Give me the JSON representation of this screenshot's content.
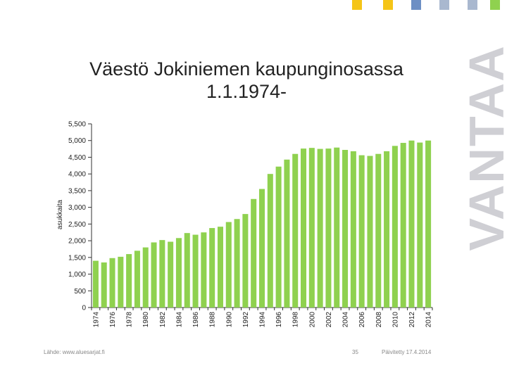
{
  "slide": {
    "title_line1": "Väestö Jokiniemen kaupunginosassa",
    "title_line2": "1.1.1974-",
    "source": "Lähde: www.aluesarjat.fi",
    "page_number": "35",
    "updated": "Päivitetty 17.4.2014",
    "brand": "VANTAA"
  },
  "colors": {
    "bar": "#8fd14f",
    "brand_squares": [
      "#f5c518",
      "#f5c518",
      "#6d8fc4",
      "#a9b8cf",
      "#a9b8cf",
      "#8fd14f"
    ]
  },
  "chart_data": {
    "type": "bar",
    "title": "Väestö Jokiniemen kaupunginosassa 1.1.1974-",
    "ylabel": "asukkaita",
    "xlabel": "",
    "ylim": [
      0,
      5500
    ],
    "yticks": [
      0,
      500,
      1000,
      1500,
      2000,
      2500,
      3000,
      3500,
      4000,
      4500,
      5000,
      5500
    ],
    "ytick_labels": [
      "0",
      "500",
      "1,000",
      "1,500",
      "2,000",
      "2,500",
      "3,000",
      "3,500",
      "4,000",
      "4,500",
      "5,000",
      "5,500"
    ],
    "categories": [
      1974,
      1975,
      1976,
      1977,
      1978,
      1979,
      1980,
      1981,
      1982,
      1983,
      1984,
      1985,
      1986,
      1987,
      1988,
      1989,
      1990,
      1991,
      1992,
      1993,
      1994,
      1995,
      1996,
      1997,
      1998,
      1999,
      2000,
      2001,
      2002,
      2003,
      2004,
      2005,
      2006,
      2007,
      2008,
      2009,
      2010,
      2011,
      2012,
      2013,
      2014
    ],
    "labeled_categories": [
      "1974",
      "1976",
      "1978",
      "1980",
      "1982",
      "1984",
      "1986",
      "1988",
      "1990",
      "1992",
      "1994",
      "1996",
      "1998",
      "2000",
      "2002",
      "2004",
      "2006",
      "2008",
      "2010",
      "2012",
      "2014"
    ],
    "values": [
      1400,
      1350,
      1480,
      1520,
      1600,
      1700,
      1800,
      1950,
      2020,
      1970,
      2080,
      2230,
      2180,
      2250,
      2380,
      2420,
      2560,
      2650,
      2800,
      3250,
      3550,
      4000,
      4220,
      4430,
      4600,
      4760,
      4780,
      4750,
      4760,
      4790,
      4720,
      4680,
      4560,
      4540,
      4600,
      4680,
      4840,
      4930,
      5000,
      4940,
      5000
    ],
    "grid": false,
    "legend": "none"
  }
}
